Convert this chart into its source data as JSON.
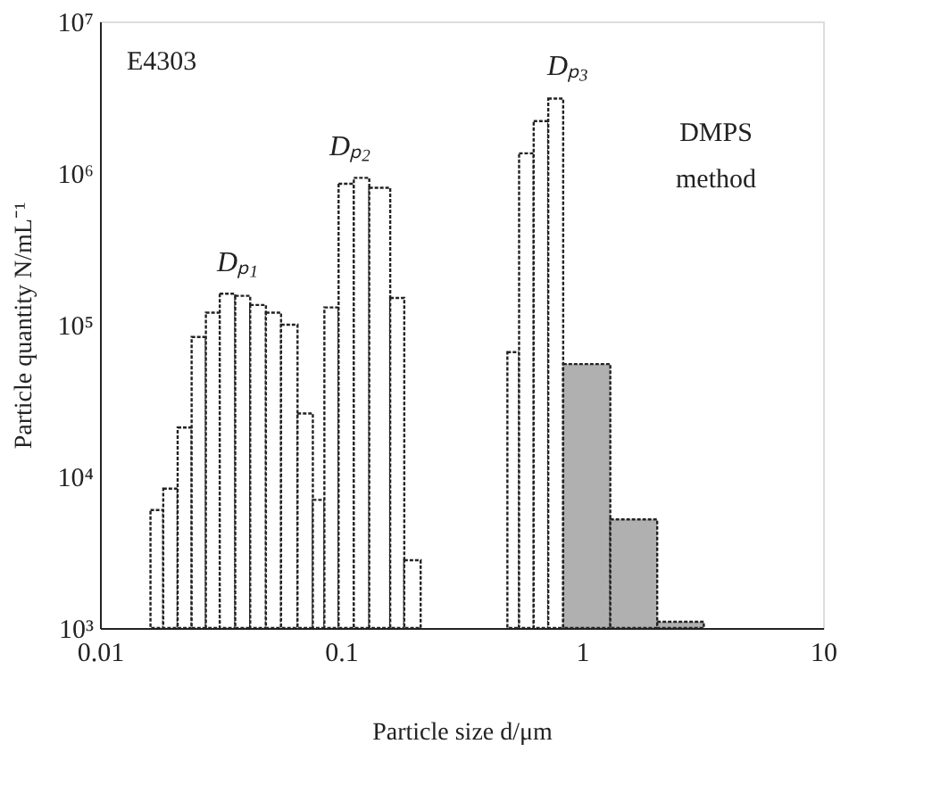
{
  "chart_data": {
    "type": "histogram",
    "xlabel": "Particle size d/μm",
    "ylabel": "Particle quantity N/mL⁻¹",
    "bins": [
      0.0162,
      0.0183,
      0.021,
      0.024,
      0.0275,
      0.0314,
      0.0364,
      0.042,
      0.0488,
      0.0564,
      0.066,
      0.0764,
      0.0853,
      0.0977,
      0.113,
      0.131,
      0.16,
      0.183,
      0.214,
      0.49,
      0.548,
      0.63,
      0.724,
      0.835,
      1.31,
      2.05,
      3.2
    ],
    "values": [
      6000,
      8300,
      21000,
      83000,
      120000,
      160000,
      155000,
      135000,
      120000,
      100000,
      26000,
      7000,
      130000,
      850000,
      930000,
      800000,
      150000,
      2800,
      null,
      66000,
      1350000,
      2200000,
      3100000,
      55000,
      5200,
      1100
    ],
    "colors": [
      "#ffffff",
      "#ffffff",
      "#ffffff",
      "#ffffff",
      "#ffffff",
      "#ffffff",
      "#ffffff",
      "#ffffff",
      "#ffffff",
      "#ffffff",
      "#ffffff",
      "#ffffff",
      "#ffffff",
      "#ffffff",
      "#ffffff",
      "#ffffff",
      "#ffffff",
      "#ffffff",
      "#ffffff",
      "#ffffff",
      "#ffffff",
      "#ffffff",
      "#ffffff",
      "#b0b0b0",
      "#b0b0b0",
      "#b0b0b0"
    ],
    "log": "xy",
    "xlim": [
      0.01,
      10
    ],
    "xticks": [
      0.01,
      0.1,
      1,
      10
    ],
    "ylim": [
      1000,
      10000000
    ],
    "yticks": [
      {
        "value": 1000,
        "label": "10³"
      },
      {
        "value": 10000,
        "label": "10⁴"
      },
      {
        "value": 100000,
        "label": "10⁵"
      },
      {
        "value": 1000000,
        "label": "10⁶"
      },
      {
        "value": 10000000,
        "label": "10⁷"
      }
    ],
    "grid": false,
    "annotations": [
      "E4303",
      "Dₚ₁",
      "Dₚ₂",
      "Dₚ₃",
      "DMPS method"
    ]
  }
}
